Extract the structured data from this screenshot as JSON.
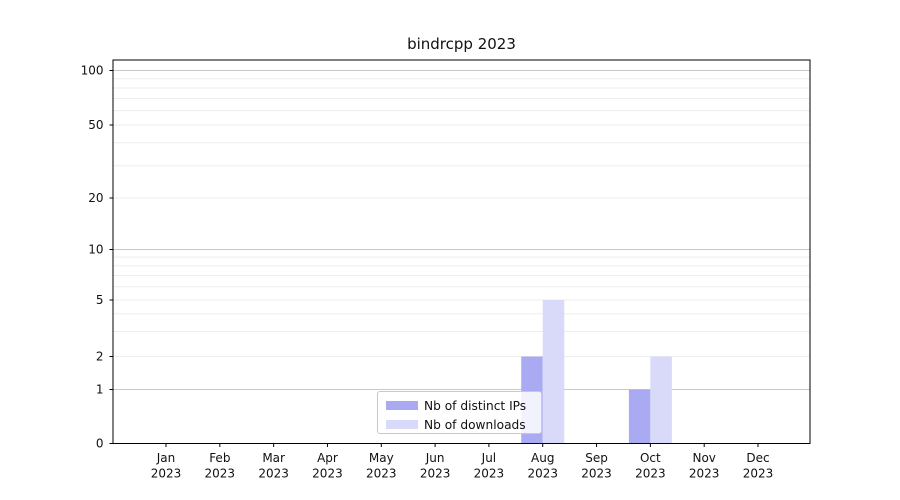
{
  "title": "bindrcpp 2023",
  "legend": {
    "items": [
      {
        "label": "Nb of distinct IPs",
        "color": "#a9aaf2"
      },
      {
        "label": "Nb of downloads",
        "color": "#d9dafa"
      }
    ]
  },
  "chart_data": {
    "type": "bar",
    "title": "bindrcpp 2023",
    "categories": [
      "Jan",
      "Feb",
      "Mar",
      "Apr",
      "May",
      "Jun",
      "Jul",
      "Aug",
      "Sep",
      "Oct",
      "Nov",
      "Dec"
    ],
    "year_label": "2023",
    "series": [
      {
        "name": "Nb of distinct IPs",
        "color": "#a9aaf2",
        "values": [
          0,
          0,
          0,
          0,
          0,
          0,
          0,
          2,
          0,
          1,
          0,
          0
        ]
      },
      {
        "name": "Nb of downloads",
        "color": "#d9dafa",
        "values": [
          0,
          0,
          0,
          0,
          0,
          0,
          0,
          5,
          0,
          2,
          0,
          0
        ]
      }
    ],
    "xlabel": "",
    "ylabel": "",
    "y_scale": "symlog",
    "y_ticks": [
      0,
      1,
      2,
      5,
      10,
      20,
      50,
      100
    ],
    "y_minor_gridlines": [
      3,
      4,
      6,
      7,
      8,
      9,
      30,
      40,
      60,
      70,
      80,
      90
    ],
    "ylim": [
      0,
      115
    ],
    "grid": true,
    "legend_position": "lower center",
    "colors": {
      "decade_gridline": "#c8c8c8",
      "minor_gridline": "#ededed",
      "axis": "#000000",
      "background": "#ffffff"
    }
  }
}
